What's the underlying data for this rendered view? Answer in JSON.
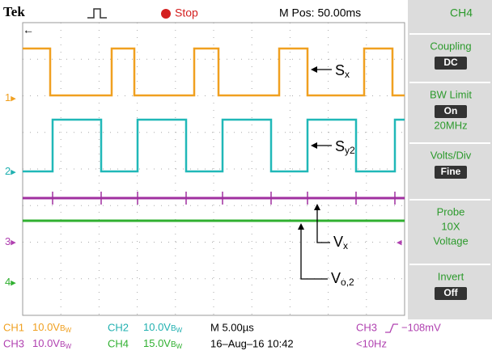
{
  "header": {
    "brand": "Tek",
    "status": "Stop",
    "position": "M Pos: 50.00ms",
    "channel": "CH4"
  },
  "markers": [
    "1",
    "2",
    "3",
    "4"
  ],
  "annotations": [
    {
      "main": "S",
      "sub": "x"
    },
    {
      "main": "S",
      "sub": "y2"
    },
    {
      "main": "V",
      "sub": "x"
    },
    {
      "main": "V",
      "sub": "o,2"
    }
  ],
  "menu": [
    {
      "title": "Coupling",
      "value": "DC"
    },
    {
      "title": "BW Limit",
      "value": "On",
      "extra": "20MHz"
    },
    {
      "title": "Volts/Div",
      "value": "Fine"
    },
    {
      "title": "Probe",
      "lines": [
        "10X",
        "Voltage"
      ]
    },
    {
      "title": "Invert",
      "value": "Off"
    }
  ],
  "footer": {
    "bw": "B",
    "bw_sub": "W",
    "row1": {
      "ch1": "CH1",
      "ch1_scale": "10.0V",
      "ch2": "CH2",
      "ch2_scale": "10.0V",
      "time": "M 5.00µs",
      "trig_ch": "CH3",
      "trig_level": "−108mV"
    },
    "row2": {
      "ch3": "CH3",
      "ch3_scale": "10.0V",
      "ch4": "CH4",
      "ch4_scale": "15.0V",
      "date": "16–Aug–16 10:42",
      "freq": "<10Hz"
    }
  }
}
